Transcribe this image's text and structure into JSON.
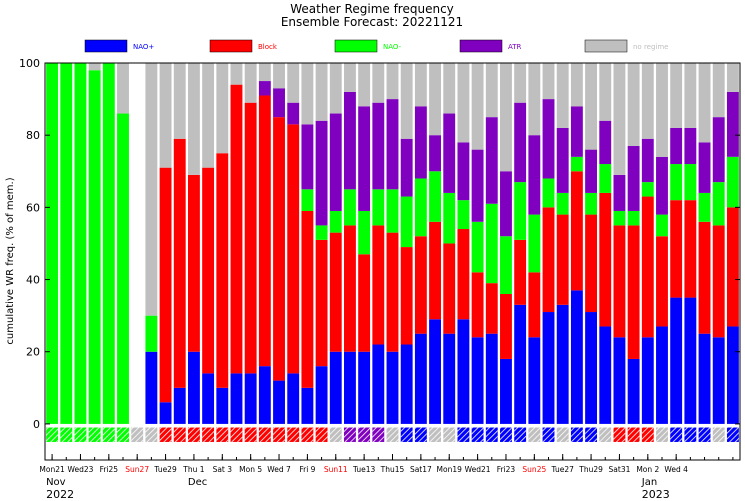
{
  "chart_data": {
    "type": "bar",
    "stacked": true,
    "title": "Weather Regime frequency",
    "subtitle": "Ensemble Forecast: 20221121",
    "ylabel": "cumulative WR freq. (% of mem.)",
    "ylim": [
      -10,
      100
    ],
    "yticks": [
      0,
      20,
      40,
      60,
      80,
      100
    ],
    "grid": false,
    "legend_position": "top",
    "colors": {
      "nao_plus": "#0000ff",
      "block": "#ff0000",
      "nao_minus": "#00ff00",
      "atr": "#7f00bf",
      "no_regime": "#bfbfbf"
    },
    "series": [
      {
        "key": "nao_plus",
        "name": "NAO+",
        "color": "#0000ff",
        "values": [
          0,
          0,
          0,
          0,
          0,
          0,
          0,
          20,
          6,
          10,
          20,
          14,
          10,
          14,
          14,
          16,
          12,
          14,
          10,
          16,
          20,
          20,
          20,
          22,
          20,
          22,
          25,
          29,
          25,
          29,
          24,
          25,
          18,
          33,
          24,
          31,
          33,
          37,
          31,
          27,
          24,
          18,
          24,
          27,
          35,
          35,
          25,
          24,
          27
        ]
      },
      {
        "key": "block",
        "name": "Block",
        "color": "#ff0000",
        "values": [
          0,
          0,
          0,
          0,
          0,
          0,
          0,
          0,
          65,
          69,
          49,
          57,
          65,
          80,
          75,
          75,
          73,
          69,
          49,
          35,
          33,
          35,
          27,
          33,
          33,
          27,
          27,
          27,
          25,
          25,
          18,
          14,
          18,
          18,
          18,
          29,
          25,
          33,
          27,
          37,
          31,
          37,
          39,
          25,
          27,
          27,
          31,
          31,
          33
        ]
      },
      {
        "key": "nao_minus",
        "name": "NAO-",
        "color": "#00ff00",
        "values": [
          100,
          100,
          100,
          98,
          100,
          86,
          0,
          10,
          0,
          0,
          0,
          0,
          0,
          0,
          0,
          0,
          0,
          0,
          6,
          4,
          6,
          10,
          12,
          10,
          12,
          14,
          16,
          14,
          14,
          8,
          14,
          22,
          16,
          16,
          16,
          8,
          6,
          4,
          6,
          8,
          4,
          4,
          4,
          6,
          10,
          10,
          8,
          12,
          14
        ]
      },
      {
        "key": "atr",
        "name": "ATR",
        "color": "#7f00bf",
        "values": [
          0,
          0,
          0,
          0,
          0,
          0,
          0,
          0,
          0,
          0,
          0,
          0,
          0,
          0,
          0,
          4,
          8,
          6,
          18,
          29,
          27,
          27,
          29,
          24,
          25,
          16,
          20,
          10,
          22,
          16,
          20,
          24,
          18,
          22,
          22,
          22,
          18,
          14,
          12,
          12,
          10,
          18,
          12,
          16,
          10,
          10,
          14,
          18,
          18
        ]
      },
      {
        "key": "no_regime",
        "name": "no regime",
        "color": "#bfbfbf",
        "values": [
          0,
          0,
          0,
          2,
          0,
          14,
          0,
          70,
          29,
          21,
          31,
          29,
          25,
          6,
          11,
          5,
          7,
          11,
          17,
          16,
          14,
          8,
          12,
          11,
          10,
          21,
          12,
          20,
          14,
          22,
          24,
          15,
          30,
          11,
          20,
          10,
          18,
          12,
          24,
          16,
          31,
          23,
          21,
          26,
          18,
          18,
          22,
          15,
          8
        ]
      }
    ],
    "category_markers": [
      "nao_minus",
      "nao_minus",
      "nao_minus",
      "nao_minus",
      "nao_minus",
      "nao_minus",
      "no_regime",
      "no_regime",
      "block",
      "block",
      "block",
      "block",
      "block",
      "block",
      "block",
      "block",
      "block",
      "block",
      "block",
      "block",
      "no_regime",
      "atr",
      "atr",
      "atr",
      "no_regime",
      "nao_plus",
      "nao_plus",
      "no_regime",
      "no_regime",
      "nao_plus",
      "nao_plus",
      "nao_plus",
      "nao_plus",
      "nao_plus",
      "no_regime",
      "nao_plus",
      "no_regime",
      "nao_plus",
      "nao_plus",
      "no_regime",
      "block",
      "block",
      "block",
      "no_regime",
      "nao_plus",
      "nao_plus",
      "nao_plus",
      "no_regime",
      "nao_plus"
    ],
    "x_ticks": [
      {
        "index": 0,
        "label": "Mon21",
        "color": "#000000"
      },
      {
        "index": 2,
        "label": "Wed23",
        "color": "#000000"
      },
      {
        "index": 4,
        "label": "Fri25",
        "color": "#000000"
      },
      {
        "index": 6,
        "label": "Sun27",
        "color": "#ff0000"
      },
      {
        "index": 8,
        "label": "Tue29",
        "color": "#000000"
      },
      {
        "index": 10,
        "label": "Thu 1",
        "color": "#000000"
      },
      {
        "index": 12,
        "label": "Sat 3",
        "color": "#000000"
      },
      {
        "index": 14,
        "label": "Mon 5",
        "color": "#000000"
      },
      {
        "index": 16,
        "label": "Wed 7",
        "color": "#000000"
      },
      {
        "index": 18,
        "label": "Fri 9",
        "color": "#000000"
      },
      {
        "index": 20,
        "label": "Sun11",
        "color": "#ff0000"
      },
      {
        "index": 22,
        "label": "Tue13",
        "color": "#000000"
      },
      {
        "index": 24,
        "label": "Thu15",
        "color": "#000000"
      },
      {
        "index": 26,
        "label": "Sat17",
        "color": "#000000"
      },
      {
        "index": 28,
        "label": "Mon19",
        "color": "#000000"
      },
      {
        "index": 30,
        "label": "Wed21",
        "color": "#000000"
      },
      {
        "index": 32,
        "label": "Fri23",
        "color": "#000000"
      },
      {
        "index": 34,
        "label": "Sun25",
        "color": "#ff0000"
      },
      {
        "index": 36,
        "label": "Tue27",
        "color": "#000000"
      },
      {
        "index": 38,
        "label": "Thu29",
        "color": "#000000"
      },
      {
        "index": 40,
        "label": "Sat31",
        "color": "#000000"
      },
      {
        "index": 42,
        "label": "Mon 2",
        "color": "#000000"
      },
      {
        "index": 44,
        "label": "Wed 4",
        "color": "#000000"
      }
    ],
    "period_labels": [
      {
        "index": 0,
        "label": "Nov",
        "row": 1
      },
      {
        "index": 0,
        "label": "2022",
        "row": 2
      },
      {
        "index": 10,
        "label": "Dec",
        "row": 1
      },
      {
        "index": 42,
        "label": "Jan",
        "row": 1
      },
      {
        "index": 42,
        "label": "2023",
        "row": 2
      }
    ]
  }
}
